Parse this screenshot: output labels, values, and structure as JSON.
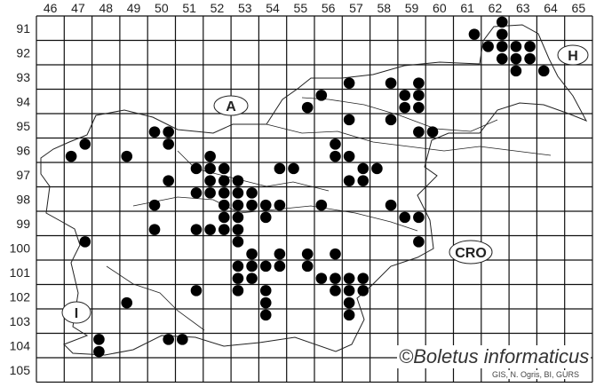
{
  "map": {
    "grid_columns": [
      "46",
      "47",
      "48",
      "49",
      "50",
      "51",
      "52",
      "53",
      "54",
      "55",
      "56",
      "57",
      "58",
      "59",
      "60",
      "61",
      "62",
      "63",
      "64",
      "65"
    ],
    "grid_rows": [
      "91",
      "92",
      "93",
      "94",
      "95",
      "96",
      "97",
      "98",
      "99",
      "100",
      "101",
      "102",
      "103",
      "104",
      "105"
    ],
    "country_labels": {
      "austria": "A",
      "hungary": "H",
      "croatia": "CRO",
      "italy": "I"
    },
    "copyright": "©Boletus informaticus",
    "source": "GIS, N. Ogris, BI, GURS",
    "dot_color": "#000000",
    "occurrences": [
      [
        62.75,
        91.25
      ],
      [
        61.75,
        91.75
      ],
      [
        62.75,
        91.75
      ],
      [
        62.25,
        92.25
      ],
      [
        62.75,
        92.25
      ],
      [
        63.25,
        92.25
      ],
      [
        63.75,
        92.25
      ],
      [
        62.75,
        92.75
      ],
      [
        63.25,
        92.75
      ],
      [
        63.75,
        92.75
      ],
      [
        63.25,
        93.25
      ],
      [
        64.25,
        93.25
      ],
      [
        57.25,
        93.75
      ],
      [
        58.75,
        93.75
      ],
      [
        59.75,
        93.75
      ],
      [
        56.25,
        94.25
      ],
      [
        59.25,
        94.25
      ],
      [
        59.75,
        94.25
      ],
      [
        55.75,
        94.75
      ],
      [
        59.25,
        94.75
      ],
      [
        59.75,
        94.75
      ],
      [
        57.25,
        95.25
      ],
      [
        58.75,
        95.25
      ],
      [
        50.25,
        95.75
      ],
      [
        50.75,
        95.75
      ],
      [
        59.75,
        95.75
      ],
      [
        60.25,
        95.75
      ],
      [
        47.75,
        96.25
      ],
      [
        50.75,
        96.25
      ],
      [
        56.75,
        96.25
      ],
      [
        47.25,
        96.75
      ],
      [
        49.25,
        96.75
      ],
      [
        52.25,
        96.75
      ],
      [
        56.75,
        96.75
      ],
      [
        57.25,
        96.75
      ],
      [
        51.75,
        97.25
      ],
      [
        52.25,
        97.25
      ],
      [
        52.75,
        97.25
      ],
      [
        54.75,
        97.25
      ],
      [
        55.25,
        97.25
      ],
      [
        57.75,
        97.25
      ],
      [
        58.25,
        97.25
      ],
      [
        50.75,
        97.75
      ],
      [
        52.25,
        97.75
      ],
      [
        52.75,
        97.75
      ],
      [
        53.25,
        97.75
      ],
      [
        57.25,
        97.75
      ],
      [
        57.75,
        97.75
      ],
      [
        51.75,
        98.25
      ],
      [
        52.25,
        98.25
      ],
      [
        52.75,
        98.25
      ],
      [
        53.25,
        98.25
      ],
      [
        53.75,
        98.25
      ],
      [
        50.25,
        98.75
      ],
      [
        52.75,
        98.75
      ],
      [
        53.25,
        98.75
      ],
      [
        53.75,
        98.75
      ],
      [
        54.25,
        98.75
      ],
      [
        54.75,
        98.75
      ],
      [
        56.25,
        98.75
      ],
      [
        58.75,
        98.75
      ],
      [
        52.75,
        99.25
      ],
      [
        53.25,
        99.25
      ],
      [
        54.25,
        99.25
      ],
      [
        59.25,
        99.25
      ],
      [
        59.75,
        99.25
      ],
      [
        50.25,
        99.75
      ],
      [
        51.75,
        99.75
      ],
      [
        52.25,
        99.75
      ],
      [
        52.75,
        99.75
      ],
      [
        53.25,
        99.75
      ],
      [
        47.75,
        100.25
      ],
      [
        53.25,
        100.25
      ],
      [
        59.75,
        100.25
      ],
      [
        53.75,
        100.75
      ],
      [
        54.75,
        100.75
      ],
      [
        55.75,
        100.75
      ],
      [
        56.75,
        100.75
      ],
      [
        53.25,
        101.25
      ],
      [
        53.75,
        101.25
      ],
      [
        54.25,
        101.25
      ],
      [
        54.75,
        101.25
      ],
      [
        55.75,
        101.25
      ],
      [
        53.25,
        101.75
      ],
      [
        53.75,
        101.75
      ],
      [
        56.25,
        101.75
      ],
      [
        56.75,
        101.75
      ],
      [
        57.25,
        101.75
      ],
      [
        57.75,
        101.75
      ],
      [
        51.75,
        102.25
      ],
      [
        53.25,
        102.25
      ],
      [
        54.25,
        102.25
      ],
      [
        56.75,
        102.25
      ],
      [
        57.25,
        102.25
      ],
      [
        57.75,
        102.25
      ],
      [
        49.25,
        102.75
      ],
      [
        54.25,
        102.75
      ],
      [
        57.25,
        102.75
      ],
      [
        54.25,
        103.25
      ],
      [
        57.25,
        103.25
      ],
      [
        48.25,
        104.25
      ],
      [
        50.75,
        104.25
      ],
      [
        51.25,
        104.25
      ],
      [
        48.25,
        104.75
      ]
    ]
  }
}
